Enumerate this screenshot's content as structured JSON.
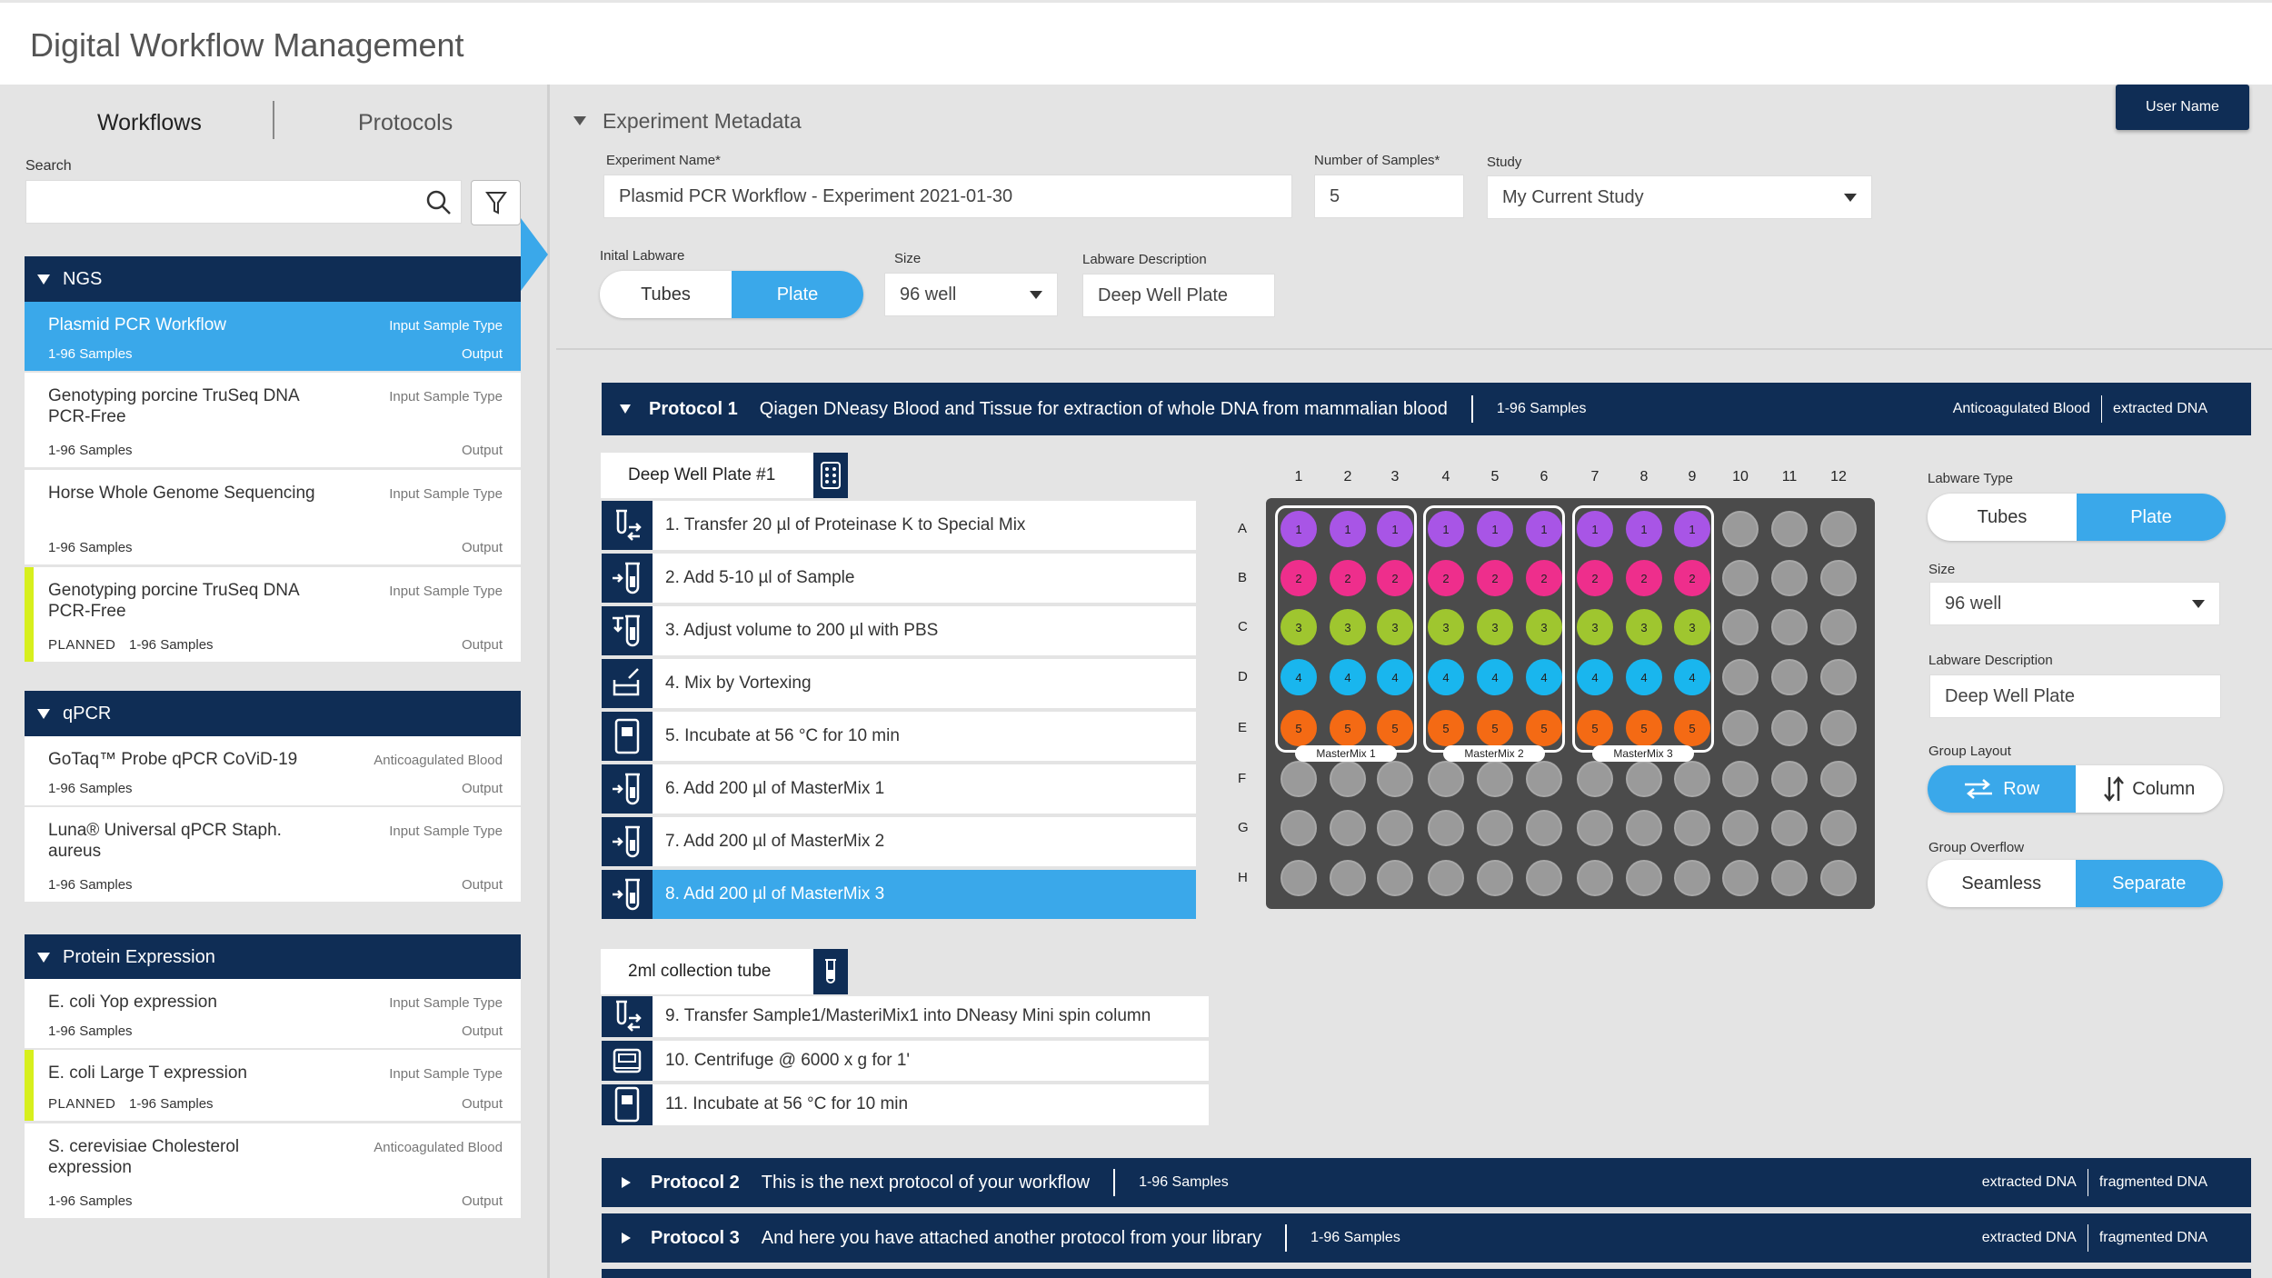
{
  "app_title": "Digital Workflow Management",
  "sidebar": {
    "tabs": [
      "Workflows",
      "Protocols"
    ],
    "search_label": "Search",
    "groups": [
      {
        "name": "NGS",
        "items": [
          {
            "name": "Plasmid PCR Workflow",
            "input": "Input Sample Type",
            "samples": "1-96 Samples",
            "output": "Output"
          },
          {
            "name": "Genotyping porcine TruSeq DNA PCR-Free",
            "input": "Input Sample Type",
            "samples": "1-96 Samples",
            "output": "Output"
          },
          {
            "name": "Horse Whole Genome Sequencing",
            "input": "Input Sample Type",
            "samples": "1-96 Samples",
            "output": "Output"
          },
          {
            "name": "Genotyping porcine TruSeq DNA PCR-Free",
            "input": "Input Sample Type",
            "planned": "PLANNED",
            "samples": "1-96 Samples",
            "output": "Output"
          }
        ]
      },
      {
        "name": "qPCR",
        "items": [
          {
            "name": "GoTaq™ Probe qPCR CoViD-19",
            "input": "Anticoagulated Blood",
            "samples": "1-96 Samples",
            "output": "Output"
          },
          {
            "name": "Luna® Universal qPCR Staph. aureus",
            "input": "Input Sample Type",
            "samples": "1-96 Samples",
            "output": "Output"
          }
        ]
      },
      {
        "name": "Protein Expression",
        "items": [
          {
            "name": "E. coli Yop expression",
            "input": "Input Sample Type",
            "samples": "1-96 Samples",
            "output": "Output"
          },
          {
            "name": "E. coli Large T expression",
            "input": "Input Sample Type",
            "planned": "PLANNED",
            "samples": "1-96 Samples",
            "output": "Output"
          },
          {
            "name": "S. cerevisiae Cholesterol expression",
            "input": "Anticoagulated Blood",
            "samples": "1-96 Samples",
            "output": "Output"
          }
        ]
      }
    ]
  },
  "user_button": "User Name",
  "metadata": {
    "title": "Experiment Metadata",
    "experiment_name_label": "Experiment Name*",
    "experiment_name": "Plasmid PCR Workflow - Experiment 2021-01-30",
    "num_samples_label": "Number of Samples*",
    "num_samples": "5",
    "study_label": "Study",
    "study": "My Current Study",
    "initial_labware_label": "Inital Labware",
    "labware_options": [
      "Tubes",
      "Plate"
    ],
    "labware_selected": "Plate",
    "size_label": "Size",
    "size": "96 well",
    "labware_desc_label": "Labware Description",
    "labware_desc": "Deep Well Plate"
  },
  "protocol1": {
    "num": "Protocol 1",
    "desc": "Qiagen DNeasy Blood and Tissue for extraction of whole DNA from mammalian blood",
    "samples": "1-96 Samples",
    "in": "Anticoagulated Blood",
    "out": "extracted DNA",
    "labware1": "Deep Well Plate #1",
    "steps1": [
      {
        "text": "1. Transfer 20 µl of Proteinase K to Special Mix",
        "icon": "transfer-icon"
      },
      {
        "text": "2. Add 5-10 µl of Sample",
        "icon": "add-to-tube-icon"
      },
      {
        "text": "3. Adjust volume to 200 µl with PBS",
        "icon": "adjust-volume-icon"
      },
      {
        "text": "4. Mix by Vortexing",
        "icon": "vortex-icon"
      },
      {
        "text": "5. Incubate at 56 °C for 10 min",
        "icon": "incubate-icon"
      },
      {
        "text": "6. Add 200 µl of MasterMix 1",
        "icon": "add-to-tube-icon"
      },
      {
        "text": "7. Add 200 µl of MasterMix 2",
        "icon": "add-to-tube-icon"
      },
      {
        "text": "8. Add 200 µl of MasterMix 3",
        "icon": "add-to-tube-icon"
      }
    ],
    "labware2": "2ml collection tube",
    "steps2": [
      {
        "text": "9. Transfer Sample1/MasteriMix1 into DNeasy Mini spin column",
        "icon": "transfer-icon"
      },
      {
        "text": "10. Centrifuge @ 6000 x g for 1'",
        "icon": "centrifuge-icon"
      },
      {
        "text": "11. Incubate at 56 °C for 10 min",
        "icon": "incubate-icon"
      }
    ]
  },
  "plate": {
    "cols": [
      "1",
      "2",
      "3",
      "4",
      "5",
      "6",
      "7",
      "8",
      "9",
      "10",
      "11",
      "12"
    ],
    "rows": [
      "A",
      "B",
      "C",
      "D",
      "E",
      "F",
      "G",
      "H"
    ],
    "row_colors": {
      "A": "#a855e6",
      "B": "#ee2e8c",
      "C": "#9fc62f",
      "D": "#19b6ee",
      "E": "#f46a14"
    },
    "row_numbers": {
      "A": "1",
      "B": "2",
      "C": "3",
      "D": "4",
      "E": "5"
    },
    "groups": [
      "MasterMix 1",
      "MasterMix 2",
      "MasterMix 3"
    ]
  },
  "side_panel": {
    "labware_type_label": "Labware Type",
    "labware_options": [
      "Tubes",
      "Plate"
    ],
    "size_label": "Size",
    "size": "96 well",
    "desc_label": "Labware Description",
    "desc": "Deep Well Plate",
    "group_layout_label": "Group Layout",
    "layout_options": [
      "Row",
      "Column"
    ],
    "group_overflow_label": "Group Overflow",
    "overflow_options": [
      "Seamless",
      "Separate"
    ]
  },
  "protocol2": {
    "num": "Protocol 2",
    "desc": "This is the next protocol of your workflow",
    "samples": "1-96 Samples",
    "in": "extracted DNA",
    "out": "fragmented DNA"
  },
  "protocol3": {
    "num": "Protocol 3",
    "desc": "And here you have attached another protocol from your library",
    "samples": "1-96 Samples",
    "in": "extracted DNA",
    "out": "fragmented DNA"
  }
}
